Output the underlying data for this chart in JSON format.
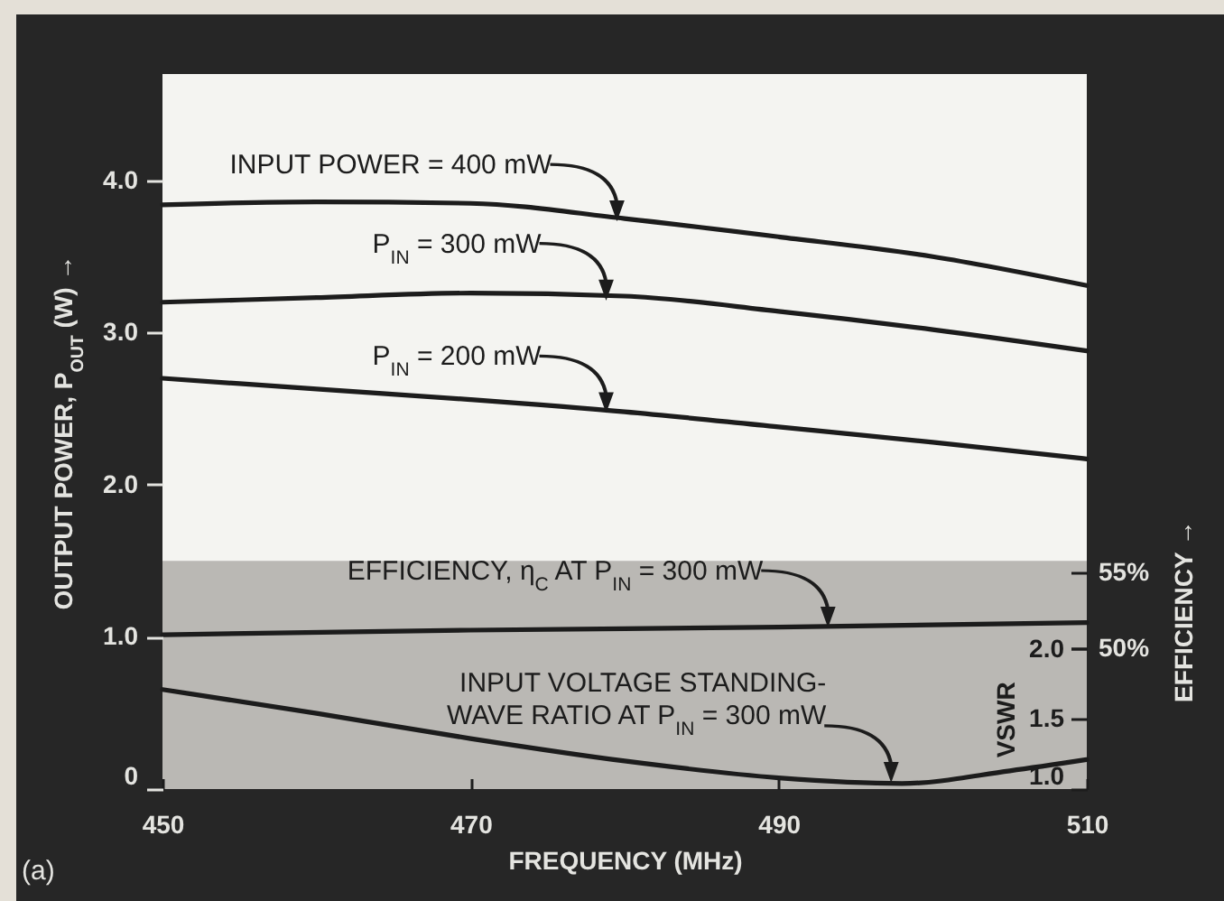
{
  "chart_data": {
    "type": "line",
    "xlabel": "FREQUENCY (MHz)",
    "ylabel": "OUTPUT POWER, P$_{OUT}$ (W) →",
    "y2label": "EFFICIENCY →",
    "y3label": "VSWR",
    "xlim": [
      450,
      510
    ],
    "xticks": [
      450,
      470,
      490,
      510
    ],
    "ylim": [
      0,
      4.7
    ],
    "yticks": [
      0,
      {
        "value": 1,
        "label": "1.0"
      },
      {
        "value": 2,
        "label": "2.0"
      },
      {
        "value": 3,
        "label": "3.0"
      },
      {
        "value": 4,
        "label": "4.0"
      }
    ],
    "y2lim": [
      40.8,
      87.6
    ],
    "y2ticks": [
      {
        "value": 50,
        "label": "50%"
      },
      {
        "value": 55,
        "label": "55%"
      }
    ],
    "y3lim": [
      1.0,
      6.1
    ],
    "y3ticks": [
      {
        "value": 1,
        "label": "1.0"
      },
      {
        "value": 1.5,
        "label": "1.5"
      },
      {
        "value": 2,
        "label": "2.0"
      }
    ],
    "series": [
      {
        "color": "#1c1c1c",
        "x": [
          450,
          460,
          470,
          480,
          490,
          500,
          510
        ],
        "values": [
          3.84,
          3.86,
          3.85,
          3.75,
          3.63,
          3.5,
          3.31
        ]
      },
      {
        "color": "#1c1c1c",
        "x": [
          450,
          460,
          470,
          480,
          490,
          500,
          510
        ],
        "values": [
          3.2,
          3.23,
          3.26,
          3.24,
          3.14,
          3.02,
          2.88
        ]
      },
      {
        "color": "#1c1c1c",
        "x": [
          450,
          460,
          470,
          480,
          490,
          500,
          510
        ],
        "values": [
          2.7,
          2.63,
          2.56,
          2.48,
          2.38,
          2.28,
          2.17
        ]
      },
      {
        "color": "#1c1c1c",
        "axis": "y2",
        "x": [
          450,
          470,
          490,
          510
        ],
        "values": [
          50.9,
          51.2,
          51.4,
          51.7
        ]
      },
      {
        "color": "#1c1c1c",
        "axis": "y3",
        "x": [
          450,
          460,
          470,
          480,
          490,
          498,
          505,
          510
        ],
        "values": [
          1.71,
          1.54,
          1.36,
          1.2,
          1.08,
          1.04,
          1.13,
          1.21
        ]
      }
    ],
    "bands": [
      {
        "axis": "y",
        "from": 0,
        "to": 1.5,
        "color": "#bab8b4"
      }
    ],
    "annotations": [
      {
        "text": "INPUT POWER = 400 mW",
        "x": 479.5,
        "y": 3.75
      },
      {
        "text": "P$_{IN}$ = 300 mW",
        "x": 478.8,
        "y": 3.23
      },
      {
        "text": "P$_{IN}$ = 200 mW",
        "x": 478.8,
        "y": 2.49
      },
      {
        "text": "EFFICIENCY, η$_{C}$ AT P$_{IN}$ = 300 mW",
        "x": 493.2,
        "y": 1.08
      },
      {
        "text": "INPUT VOLTAGE STANDING-\nWAVE RATIO AT P$_{IN}$ = 300 mW",
        "x": 497.3,
        "y": 0.06
      },
      "(a)"
    ]
  }
}
